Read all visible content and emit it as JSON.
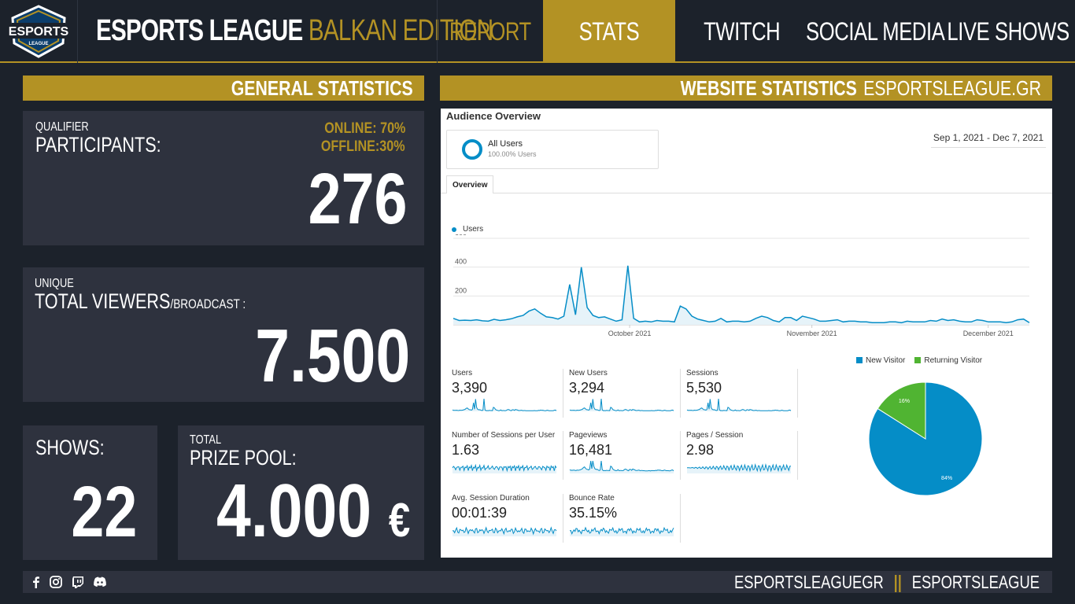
{
  "header": {
    "logo_text": "ESPORTS",
    "logo_sub": "LEAGUE",
    "brand_main": "ESPORTS LEAGUE",
    "brand_accent": "BALKAN EDITION",
    "nav": {
      "report": "REPORT",
      "stats": "STATS",
      "twitch": "TWITCH",
      "social": "SOCIAL MEDIA",
      "live": "LIVE SHOWS"
    },
    "active_tab": "STATS"
  },
  "general": {
    "title": "GENERAL STATISTICS",
    "participants": {
      "small": "QUALIFIER",
      "label": "PARTICIPANTS:",
      "online": "ONLINE: 70%",
      "offline": "OFFLINE:30%",
      "value": "276"
    },
    "viewers": {
      "small": "UNIQUE",
      "label": "TOTAL VIEWERS",
      "label_small": "/BROADCAST :",
      "value": "7.500"
    },
    "shows": {
      "label": "SHOWS:",
      "value": "22"
    },
    "prize": {
      "small": "TOTAL",
      "label": "PRIZE POOL:",
      "value": "4.000",
      "currency": "€"
    }
  },
  "website": {
    "title": "WEBSITE STATISTICS",
    "domain": "ESPORTSLEAGUE.GR",
    "audience_title": "Audience Overview",
    "segment_name": "All Users",
    "segment_sub": "100.00% Users",
    "date_range": "Sep 1, 2021 - Dec 7, 2021",
    "tab_overview": "Overview",
    "users_legend": "Users",
    "metrics": [
      {
        "label": "Users",
        "value": "3,390"
      },
      {
        "label": "New Users",
        "value": "3,294"
      },
      {
        "label": "Sessions",
        "value": "5,530"
      },
      {
        "label": "Number of Sessions per User",
        "value": "1.63"
      },
      {
        "label": "Pageviews",
        "value": "16,481"
      },
      {
        "label": "Pages / Session",
        "value": "2.98"
      },
      {
        "label": "Avg. Session Duration",
        "value": "00:01:39"
      },
      {
        "label": "Bounce Rate",
        "value": "35.15%"
      }
    ],
    "pie_legend": {
      "new": "New Visitor",
      "returning": "Returning Visitor"
    },
    "pie_labels": {
      "new": "84%",
      "returning": "16%"
    }
  },
  "chart_data": [
    {
      "type": "line",
      "series": [
        {
          "name": "Users",
          "values": [
            45,
            30,
            32,
            30,
            35,
            28,
            25,
            38,
            30,
            35,
            42,
            55,
            65,
            95,
            110,
            80,
            55,
            50,
            40,
            60,
            280,
            70,
            400,
            120,
            65,
            50,
            55,
            40,
            25,
            35,
            410,
            45,
            20,
            25,
            20,
            30,
            25,
            25,
            20,
            130,
            110,
            60,
            40,
            30,
            20,
            25,
            45,
            20,
            25,
            25,
            20,
            25,
            45,
            60,
            50,
            30,
            20,
            50,
            50,
            30,
            60,
            50,
            40,
            25,
            25,
            30,
            35,
            20,
            25,
            25,
            20,
            20,
            15,
            15,
            15,
            20,
            20,
            15,
            25,
            20,
            20,
            20,
            30,
            25,
            40,
            30,
            35,
            25,
            20,
            20,
            35,
            30,
            20,
            20,
            20,
            15,
            20,
            35,
            40,
            15
          ]
        }
      ],
      "x_tick_labels": [
        "October 2021",
        "November 2021",
        "December 2021"
      ],
      "y_tick_labels": [
        "200",
        "400",
        "600"
      ],
      "ylim": [
        0,
        600
      ],
      "colors": {
        "line": "#058dc7",
        "area": "#e6f3f9"
      }
    },
    {
      "type": "pie",
      "categories": [
        "New Visitor",
        "Returning Visitor"
      ],
      "values": [
        84,
        16
      ],
      "colors": [
        "#058dc7",
        "#50b432"
      ]
    }
  ],
  "footer": {
    "social_icons": [
      "facebook-icon",
      "instagram-icon",
      "twitch-icon",
      "discord-icon"
    ],
    "handle_1": "ESPORTSLEAGUEGR",
    "separator": "||",
    "handle_2": "ESPORTSLEAGUE"
  },
  "colors": {
    "gold": "#b39224",
    "dark": "#1c222b",
    "card": "#2e323e",
    "ga_blue": "#058dc7",
    "ga_green": "#50b432"
  }
}
